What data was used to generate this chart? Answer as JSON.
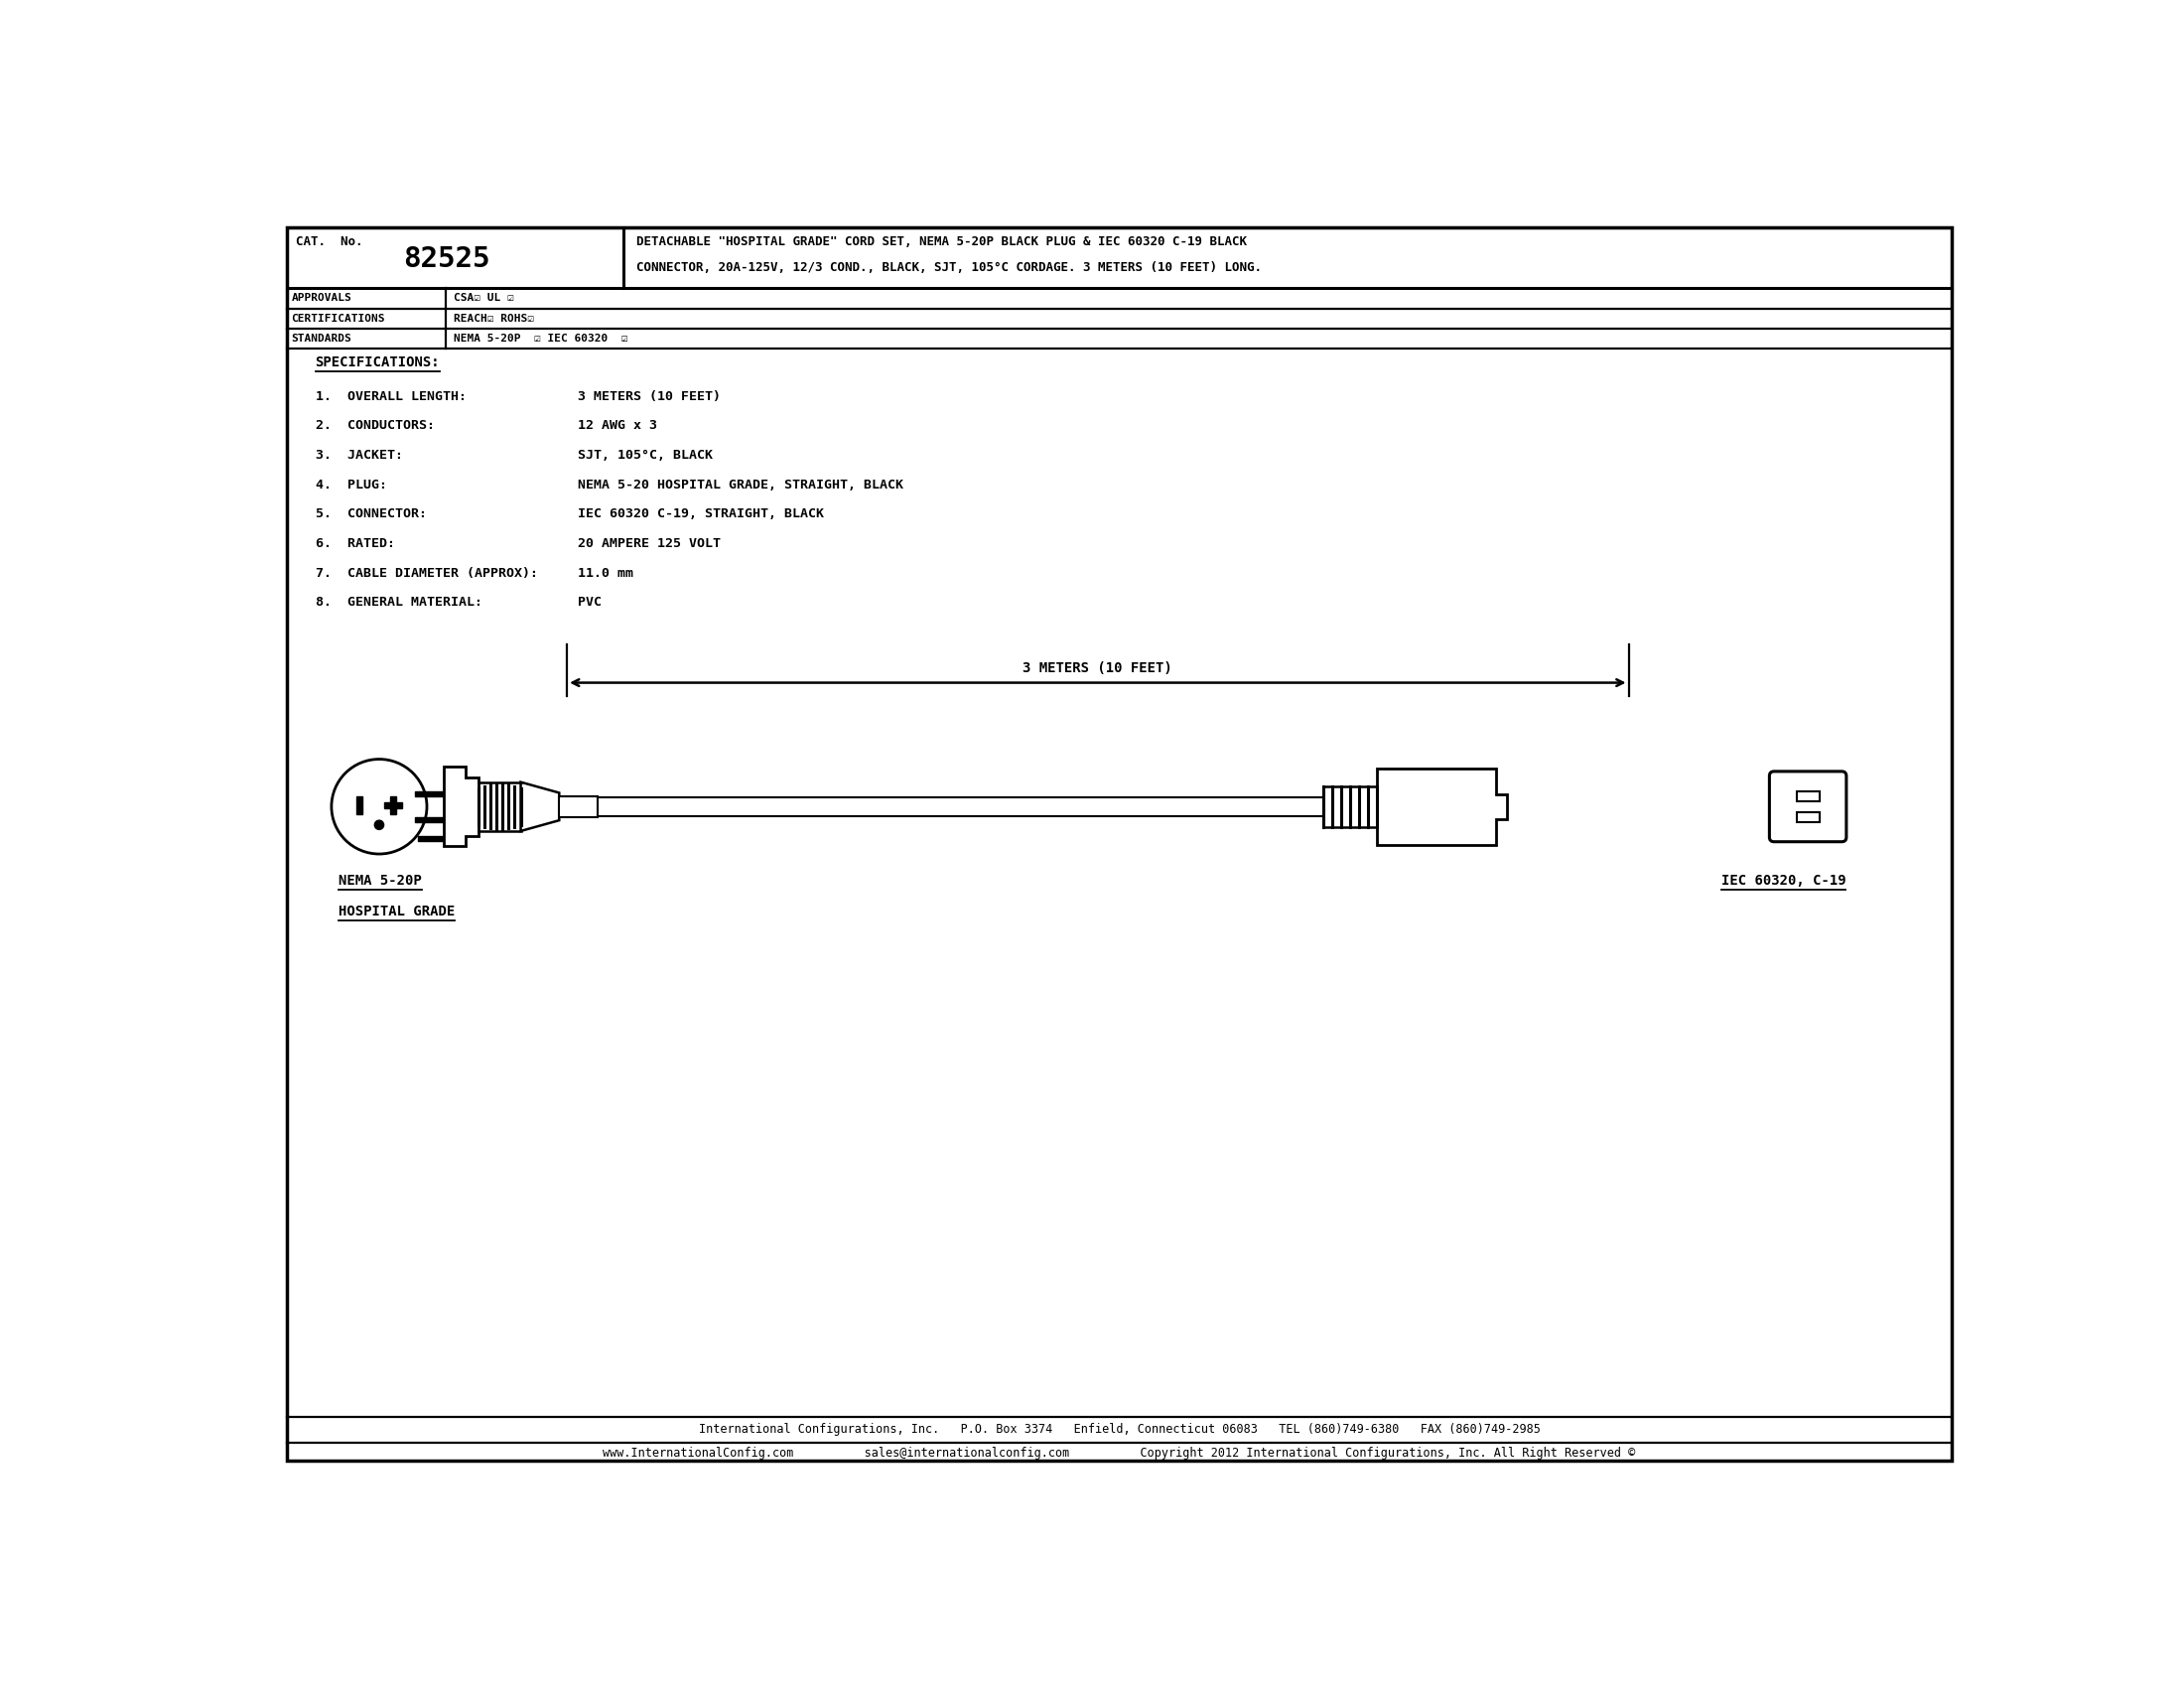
{
  "cat_label": "CAT.  No.",
  "cat_no": "82525",
  "desc1": "DETACHABLE \"HOSPITAL GRADE\" CORD SET, NEMA 5-20P BLACK PLUG & IEC 60320 C-19 BLACK",
  "desc2": "CONNECTOR, 20A-125V, 12/3 COND., BLACK, SJT, 105°C CORDAGE. 3 METERS (10 FEET) LONG.",
  "rows": [
    [
      "APPROVALS",
      "CSA☑ UL ☑"
    ],
    [
      "CERTIFICATIONS",
      "REACH☑ ROHS☑"
    ],
    [
      "STANDARDS",
      "NEMA 5-20P  ☑ IEC 60320  ☑"
    ]
  ],
  "specs_title": "SPECIFICATIONS:",
  "specs": [
    "1.  OVERALL LENGTH:              3 METERS (10 FEET)",
    "2.  CONDUCTORS:                  12 AWG x 3",
    "3.  JACKET:                      SJT, 105°C, BLACK",
    "4.  PLUG:                        NEMA 5-20 HOSPITAL GRADE, STRAIGHT, BLACK",
    "5.  CONNECTOR:                   IEC 60320 C-19, STRAIGHT, BLACK",
    "6.  RATED:                       20 AMPERE 125 VOLT",
    "7.  CABLE DIAMETER (APPROX):     11.0 mm",
    "8.  GENERAL MATERIAL:            PVC"
  ],
  "dim_label": "3 METERS (10 FEET)",
  "nema_lbl1": "NEMA 5-20P",
  "nema_lbl2": "HOSPITAL GRADE",
  "iec_lbl": "IEC 60320, C-19",
  "footer1": "International Configurations, Inc.   P.O. Box 3374   Enfield, Connecticut 06083   TEL (860)749-6380   FAX (860)749-2985",
  "footer2": "www.InternationalConfig.com          sales@internationalconfig.com          Copyright 2012 International Configurations, Inc. All Right Reserved ©"
}
